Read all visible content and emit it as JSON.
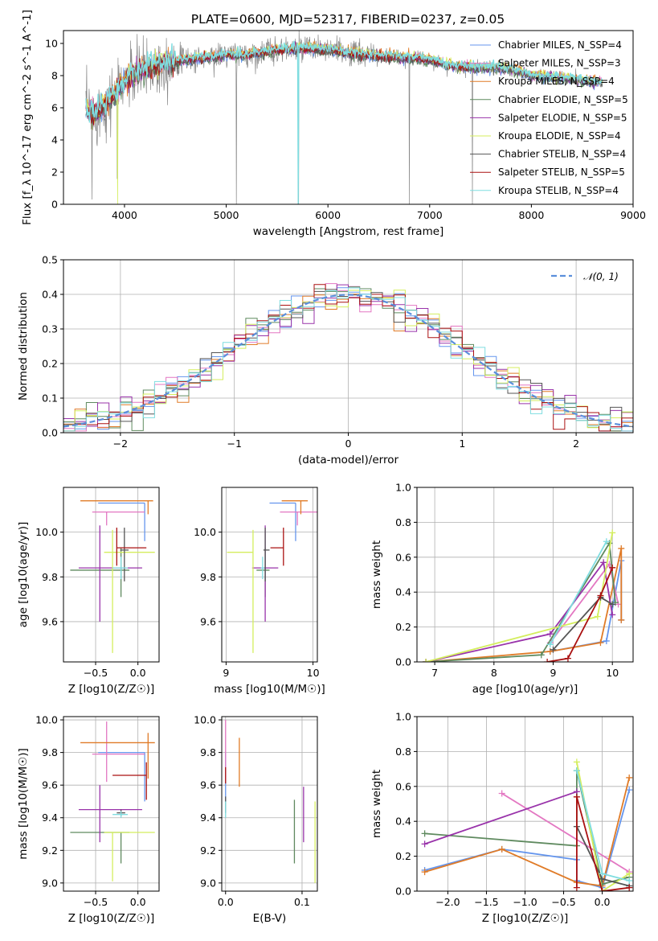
{
  "title": "PLATE=0600, MJD=52317, FIBERID=0237, z=0.05",
  "colors": {
    "chabrier_miles": "#6495ED",
    "salpeter_miles": "#E377C2",
    "kroupa_miles": "#E07B27",
    "chabrier_elodie": "#5F8A5F",
    "salpeter_elodie": "#9933AA",
    "kroupa_elodie": "#D4EE5E",
    "chabrier_stelib": "#555555",
    "salpeter_stelib": "#AA1111",
    "kroupa_stelib": "#7FDDE0",
    "gaussian": "#5B8FDB",
    "spectrum_gray": "#888888"
  },
  "chart_data": [
    {
      "id": "spectrum",
      "type": "line",
      "xlabel": "wavelength [Angstrom, rest frame]",
      "ylabel": "Flux [f_λ 10^-17 erg cm^-2 s^-1 A^-1]",
      "xlim": [
        3400,
        9000
      ],
      "ylim": [
        0,
        10.8
      ],
      "xticks": [
        4000,
        5000,
        6000,
        7000,
        8000,
        9000
      ],
      "yticks": [
        0,
        2,
        4,
        6,
        8,
        10
      ],
      "legend_position": "right",
      "legend": [
        {
          "label": "Chabrier MILES, N_SSP=4",
          "color": "#6495ED"
        },
        {
          "label": "Salpeter MILES, N_SSP=3",
          "color": "#E377C2"
        },
        {
          "label": "Kroupa MILES, N_SSP=4",
          "color": "#E07B27"
        },
        {
          "label": "Chabrier ELODIE, N_SSP=5",
          "color": "#5F8A5F"
        },
        {
          "label": "Salpeter ELODIE, N_SSP=5",
          "color": "#9933AA"
        },
        {
          "label": "Kroupa ELODIE, N_SSP=4",
          "color": "#D4EE5E"
        },
        {
          "label": "Chabrier STELIB, N_SSP=4",
          "color": "#555555"
        },
        {
          "label": "Salpeter STELIB, N_SSP=5",
          "color": "#AA1111"
        },
        {
          "label": "Kroupa STELIB, N_SSP=4",
          "color": "#7FDDE0"
        }
      ],
      "continuum": [
        [
          3620,
          6.0
        ],
        [
          3700,
          5.5
        ],
        [
          3800,
          6.2
        ],
        [
          3900,
          6.8
        ],
        [
          4000,
          7.6
        ],
        [
          4100,
          8.1
        ],
        [
          4200,
          8.4
        ],
        [
          4400,
          8.8
        ],
        [
          4600,
          9.0
        ],
        [
          4800,
          9.1
        ],
        [
          5000,
          9.3
        ],
        [
          5200,
          9.3
        ],
        [
          5500,
          9.6
        ],
        [
          5800,
          9.7
        ],
        [
          6000,
          9.6
        ],
        [
          6200,
          9.4
        ],
        [
          6500,
          9.2
        ],
        [
          6800,
          9.1
        ],
        [
          7000,
          9.0
        ],
        [
          7200,
          8.6
        ],
        [
          7400,
          8.5
        ],
        [
          7600,
          8.5
        ],
        [
          7800,
          8.4
        ],
        [
          8000,
          8.0
        ],
        [
          8200,
          7.9
        ],
        [
          8400,
          7.8
        ],
        [
          8600,
          7.6
        ],
        [
          8700,
          7.6
        ]
      ],
      "drops": [
        [
          3680,
          0.3
        ],
        [
          3930,
          1.6
        ],
        [
          5100,
          0.0
        ],
        [
          5710,
          0.0
        ],
        [
          6800,
          0.0
        ],
        [
          7420,
          0.0
        ]
      ]
    },
    {
      "id": "residuals",
      "type": "bar",
      "xlabel": "(data-model)/error",
      "ylabel": "Normed distribution",
      "xlim": [
        -2.5,
        2.5
      ],
      "ylim": [
        0,
        0.5
      ],
      "xticks": [
        -2,
        -1,
        0,
        1,
        2
      ],
      "yticks": [
        0.0,
        0.1,
        0.2,
        0.3,
        0.4,
        0.5
      ],
      "legend_position": "top-right",
      "gaussian_label": "𝒩(0, 1)"
    },
    {
      "id": "age_vs_Z",
      "type": "scatter",
      "xlabel": "Z [log10(Z/Z☉)]",
      "ylabel": "age [log10(age/yr)]",
      "xlim": [
        -0.88,
        0.25
      ],
      "ylim": [
        9.42,
        10.2
      ],
      "xticks": [
        -0.5,
        0.0
      ],
      "yticks": [
        9.6,
        9.8,
        10.0
      ],
      "points": [
        {
          "x": 0.08,
          "xerr": [
            0.55,
            0.0
          ],
          "y": 10.13,
          "yerr": [
            0.17,
            0.0
          ],
          "c": "#6495ED"
        },
        {
          "x": -0.37,
          "xerr": [
            0.17,
            0.45
          ],
          "y": 10.09,
          "yerr": [
            0.06,
            0.0
          ],
          "c": "#E377C2"
        },
        {
          "x": 0.12,
          "xerr": [
            0.8,
            0.06
          ],
          "y": 10.14,
          "yerr": [
            0.06,
            0.0
          ],
          "c": "#E07B27"
        },
        {
          "x": -0.2,
          "xerr": [
            0.6,
            0.1
          ],
          "y": 9.83,
          "yerr": [
            0.12,
            0.1
          ],
          "c": "#5F8A5F"
        },
        {
          "x": -0.45,
          "xerr": [
            0.25,
            0.5
          ],
          "y": 9.84,
          "yerr": [
            0.24,
            0.19
          ],
          "c": "#9933AA"
        },
        {
          "x": -0.3,
          "xerr": [
            0.1,
            0.5
          ],
          "y": 9.91,
          "yerr": [
            0.45,
            0.1
          ],
          "c": "#D4EE5E"
        },
        {
          "x": -0.16,
          "xerr": [
            0.05,
            0.05
          ],
          "y": 9.92,
          "yerr": [
            0.14,
            0.1
          ],
          "c": "#555555"
        },
        {
          "x": -0.25,
          "xerr": [
            0.0,
            0.35
          ],
          "y": 9.93,
          "yerr": [
            0.08,
            0.09
          ],
          "c": "#AA1111"
        },
        {
          "x": -0.2,
          "xerr": [
            0.1,
            0.08
          ],
          "y": 9.84,
          "yerr": [
            0.05,
            0.05
          ],
          "c": "#7FDDE0"
        }
      ]
    },
    {
      "id": "age_vs_mass",
      "type": "scatter",
      "xlabel": "mass [log10(M/M☉)]",
      "ylabel": "",
      "xlim": [
        8.95,
        10.05
      ],
      "ylim": [
        9.42,
        10.2
      ],
      "xticks": [
        9,
        10
      ],
      "yticks": [
        9.6,
        9.8,
        10.0
      ],
      "points": [
        {
          "x": 9.8,
          "xerr": [
            0.3,
            0.0
          ],
          "y": 10.13,
          "yerr": [
            0.17,
            0.0
          ],
          "c": "#6495ED"
        },
        {
          "x": 9.82,
          "xerr": [
            0.2,
            0.23
          ],
          "y": 10.09,
          "yerr": [
            0.06,
            0.0
          ],
          "c": "#E377C2"
        },
        {
          "x": 9.86,
          "xerr": [
            0.22,
            0.08
          ],
          "y": 10.14,
          "yerr": [
            0.06,
            0.0
          ],
          "c": "#E07B27"
        },
        {
          "x": 9.45,
          "xerr": [
            0.1,
            0.05
          ],
          "y": 9.83,
          "yerr": [
            0.12,
            0.1
          ],
          "c": "#5F8A5F"
        },
        {
          "x": 9.45,
          "xerr": [
            0.15,
            0.15
          ],
          "y": 9.84,
          "yerr": [
            0.24,
            0.19
          ],
          "c": "#9933AA"
        },
        {
          "x": 9.31,
          "xerr": [
            0.3,
            0.0
          ],
          "y": 9.91,
          "yerr": [
            0.45,
            0.1
          ],
          "c": "#D4EE5E"
        },
        {
          "x": 9.45,
          "xerr": [
            0.02,
            0.05
          ],
          "y": 9.92,
          "yerr": [
            0.14,
            0.1
          ],
          "c": "#555555"
        },
        {
          "x": 9.66,
          "xerr": [
            0.15,
            0.0
          ],
          "y": 9.93,
          "yerr": [
            0.08,
            0.09
          ],
          "c": "#AA1111"
        },
        {
          "x": 9.42,
          "xerr": [
            0.02,
            0.02
          ],
          "y": 9.84,
          "yerr": [
            0.05,
            0.05
          ],
          "c": "#7FDDE0"
        }
      ]
    },
    {
      "id": "weight_vs_age",
      "type": "line",
      "xlabel": "age [log10(age/yr)]",
      "ylabel": "mass weight",
      "xlim": [
        6.7,
        10.35
      ],
      "ylim": [
        0,
        1.0
      ],
      "xticks": [
        7,
        8,
        9,
        10
      ],
      "yticks": [
        0.0,
        0.2,
        0.4,
        0.6,
        0.8,
        1.0
      ],
      "series": [
        {
          "c": "#6495ED",
          "points": [
            [
              8.95,
              0.06
            ],
            [
              9.9,
              0.12
            ],
            [
              10.15,
              0.58
            ],
            [
              10.15,
              0.24
            ]
          ]
        },
        {
          "c": "#E377C2",
          "points": [
            [
              8.95,
              0.11
            ],
            [
              9.95,
              0.56
            ],
            [
              10.1,
              0.33
            ]
          ]
        },
        {
          "c": "#E07B27",
          "points": [
            [
              6.85,
              0.0
            ],
            [
              8.95,
              0.06
            ],
            [
              9.8,
              0.11
            ],
            [
              10.15,
              0.65
            ],
            [
              10.15,
              0.24
            ]
          ]
        },
        {
          "c": "#5F8A5F",
          "points": [
            [
              6.85,
              0.0
            ],
            [
              8.8,
              0.04
            ],
            [
              9.95,
              0.68
            ],
            [
              10.05,
              0.34
            ]
          ]
        },
        {
          "c": "#9933AA",
          "points": [
            [
              6.85,
              0.0
            ],
            [
              8.95,
              0.16
            ],
            [
              9.85,
              0.57
            ],
            [
              10.0,
              0.27
            ]
          ]
        },
        {
          "c": "#D4EE5E",
          "points": [
            [
              6.85,
              0.0
            ],
            [
              9.75,
              0.26
            ],
            [
              10.0,
              0.74
            ]
          ]
        },
        {
          "c": "#555555",
          "points": [
            [
              9.0,
              0.07
            ],
            [
              9.8,
              0.37
            ],
            [
              10.0,
              0.33
            ]
          ]
        },
        {
          "c": "#AA1111",
          "points": [
            [
              8.9,
              0.0
            ],
            [
              9.25,
              0.02
            ],
            [
              9.8,
              0.38
            ],
            [
              10.0,
              0.54
            ]
          ]
        },
        {
          "c": "#7FDDE0",
          "points": [
            [
              8.95,
              0.1
            ],
            [
              9.9,
              0.69
            ]
          ]
        }
      ]
    },
    {
      "id": "mass_vs_Z",
      "type": "scatter",
      "xlabel": "Z [log10(Z/Z☉)]",
      "ylabel": "mass [log10(M/M☉)]",
      "xlim": [
        -0.88,
        0.25
      ],
      "ylim": [
        8.95,
        10.02
      ],
      "xticks": [
        -0.5,
        0.0
      ],
      "yticks": [
        9.0,
        9.2,
        9.4,
        9.6,
        9.8,
        10.0
      ],
      "points": [
        {
          "x": 0.08,
          "xerr": [
            0.55,
            0.0
          ],
          "y": 9.8,
          "yerr": [
            0.3,
            0.0
          ],
          "c": "#6495ED"
        },
        {
          "x": -0.37,
          "xerr": [
            0.17,
            0.45
          ],
          "y": 9.79,
          "yerr": [
            0.17,
            0.2
          ],
          "c": "#E377C2"
        },
        {
          "x": 0.12,
          "xerr": [
            0.8,
            0.08
          ],
          "y": 9.86,
          "yerr": [
            0.22,
            0.06
          ],
          "c": "#E07B27"
        },
        {
          "x": -0.2,
          "xerr": [
            0.6,
            0.1
          ],
          "y": 9.31,
          "yerr": [
            0.19,
            0.0
          ],
          "c": "#5F8A5F"
        },
        {
          "x": -0.45,
          "xerr": [
            0.25,
            0.5
          ],
          "y": 9.45,
          "yerr": [
            0.2,
            0.15
          ],
          "c": "#9933AA"
        },
        {
          "x": -0.3,
          "xerr": [
            0.1,
            0.5
          ],
          "y": 9.31,
          "yerr": [
            0.3,
            0.0
          ],
          "c": "#D4EE5E"
        },
        {
          "x": -0.2,
          "xerr": [
            0.05,
            0.05
          ],
          "y": 9.43,
          "yerr": [
            0.02,
            0.02
          ],
          "c": "#555555"
        },
        {
          "x": 0.1,
          "xerr": [
            0.4,
            0.0
          ],
          "y": 9.66,
          "yerr": [
            0.15,
            0.08
          ],
          "c": "#AA1111"
        },
        {
          "x": -0.2,
          "xerr": [
            0.1,
            0.08
          ],
          "y": 9.42,
          "yerr": [
            0.02,
            0.02
          ],
          "c": "#7FDDE0"
        }
      ]
    },
    {
      "id": "mass_vs_EBV",
      "type": "scatter",
      "xlabel": "E(B-V)",
      "ylabel": "",
      "xlim": [
        -0.005,
        0.12
      ],
      "ylim": [
        8.95,
        10.02
      ],
      "xticks": [
        0.0,
        0.1
      ],
      "yticks": [
        9.0,
        9.2,
        9.4,
        9.6,
        9.8,
        10.0
      ],
      "points": [
        {
          "x": 0.0,
          "y": 9.8,
          "yerr": [
            0.3,
            0.0
          ],
          "c": "#6495ED"
        },
        {
          "x": 0.0,
          "y": 9.79,
          "yerr": [
            0.17,
            0.21
          ],
          "c": "#E377C2"
        },
        {
          "x": 0.018,
          "y": 9.74,
          "yerr": [
            0.15,
            0.15
          ],
          "c": "#E07B27"
        },
        {
          "x": 0.09,
          "y": 9.31,
          "yerr": [
            0.19,
            0.2
          ],
          "c": "#5F8A5F"
        },
        {
          "x": 0.102,
          "y": 9.42,
          "yerr": [
            0.17,
            0.17
          ],
          "c": "#9933AA"
        },
        {
          "x": 0.117,
          "y": 9.25,
          "yerr": [
            0.25,
            0.25
          ],
          "c": "#D4EE5E"
        },
        {
          "x": 0.0,
          "y": 9.48,
          "yerr": [
            0.05,
            0.05
          ],
          "c": "#555555"
        },
        {
          "x": 0.0,
          "y": 9.66,
          "yerr": [
            0.05,
            0.05
          ],
          "c": "#AA1111"
        },
        {
          "x": 0.0,
          "y": 9.45,
          "yerr": [
            0.05,
            0.05
          ],
          "c": "#7FDDE0"
        }
      ]
    },
    {
      "id": "weight_vs_Z",
      "type": "line",
      "xlabel": "Z [log10(Z/Z☉)]",
      "ylabel": "mass weight",
      "xlim": [
        -2.4,
        0.4
      ],
      "ylim": [
        0,
        1.0
      ],
      "xticks": [
        -2.0,
        -1.5,
        -1.0,
        -0.5,
        0.0
      ],
      "yticks": [
        0.0,
        0.2,
        0.4,
        0.6,
        0.8,
        1.0
      ],
      "series": [
        {
          "c": "#6495ED",
          "points": [
            [
              -2.3,
              0.12
            ],
            [
              -1.3,
              0.24
            ],
            [
              -0.33,
              0.18
            ],
            [
              -0.33,
              0.06
            ],
            [
              0.0,
              0.02
            ],
            [
              0.35,
              0.58
            ]
          ]
        },
        {
          "c": "#E377C2",
          "points": [
            [
              -1.3,
              0.56
            ],
            [
              0.35,
              0.11
            ]
          ]
        },
        {
          "c": "#E07B27",
          "points": [
            [
              -2.3,
              0.11
            ],
            [
              -1.3,
              0.24
            ],
            [
              -0.33,
              0.05
            ],
            [
              0.0,
              0.03
            ],
            [
              0.35,
              0.65
            ]
          ]
        },
        {
          "c": "#5F8A5F",
          "points": [
            [
              -2.3,
              0.33
            ],
            [
              -0.33,
              0.26
            ],
            [
              -0.33,
              0.69
            ],
            [
              0.0,
              0.04
            ],
            [
              0.35,
              0.08
            ]
          ]
        },
        {
          "c": "#9933AA",
          "points": [
            [
              -2.3,
              0.27
            ],
            [
              -0.33,
              0.57
            ]
          ]
        },
        {
          "c": "#D4EE5E",
          "points": [
            [
              -0.33,
              0.74
            ],
            [
              0.0,
              0.0
            ],
            [
              0.35,
              0.1
            ]
          ]
        },
        {
          "c": "#555555",
          "points": [
            [
              -0.33,
              0.37
            ],
            [
              0.0,
              0.07
            ],
            [
              0.35,
              0.03
            ]
          ]
        },
        {
          "c": "#AA1111",
          "points": [
            [
              -0.33,
              0.02
            ],
            [
              -0.33,
              0.54
            ],
            [
              0.0,
              0.0
            ],
            [
              0.35,
              0.02
            ]
          ]
        },
        {
          "c": "#7FDDE0",
          "points": [
            [
              -0.33,
              0.69
            ],
            [
              0.0,
              0.1
            ],
            [
              0.35,
              0.06
            ]
          ]
        }
      ]
    }
  ]
}
